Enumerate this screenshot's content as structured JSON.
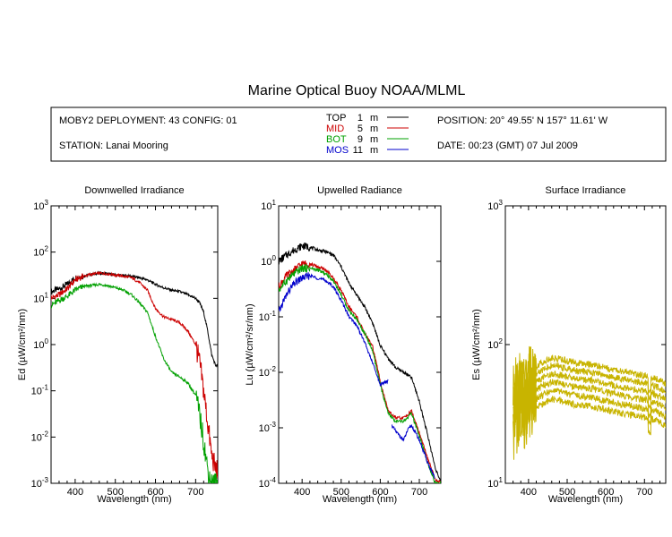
{
  "header": {
    "title": "Marine Optical Buoy NOAA/MLML",
    "deployment": "MOBY2 DEPLOYMENT: 43 CONFIG: 01",
    "station": "STATION: Lanai Mooring",
    "position": "POSITION: 20° 49.55' N   157° 11.61' W",
    "date": "DATE: 00:23 (GMT) 07 Jul 2009"
  },
  "legend": [
    {
      "name": "TOP",
      "depth": "1",
      "unit": "m",
      "color": "#000000"
    },
    {
      "name": "MID",
      "depth": "5",
      "unit": "m",
      "color": "#cc0000"
    },
    {
      "name": "BOT",
      "depth": "9",
      "unit": "m",
      "color": "#00a000"
    },
    {
      "name": "MOS",
      "depth": "11",
      "unit": "m",
      "color": "#0000cc"
    }
  ],
  "colors": {
    "surface": "#c8b400"
  },
  "chart_data": [
    {
      "type": "line",
      "title": "Downwelled Irradiance",
      "xlabel": "Wavelength (nm)",
      "ylabel": "Ed  (µW/cm²/nm)",
      "yscale": "log",
      "xlim": [
        340,
        755
      ],
      "ylim": [
        0.001,
        1000
      ],
      "xticks": [
        "400",
        "500",
        "600",
        "700"
      ],
      "yticks": [
        "10^-3",
        "10^-2",
        "10^-1",
        "10^0",
        "10^1",
        "10^2",
        "10^3"
      ],
      "series": [
        {
          "name": "TOP",
          "x": [
            340,
            360,
            380,
            400,
            420,
            440,
            460,
            480,
            500,
            520,
            540,
            560,
            580,
            600,
            620,
            640,
            660,
            680,
            700,
            710,
            720,
            730,
            740,
            750,
            755
          ],
          "y": [
            14,
            16,
            20,
            28,
            30,
            33,
            35,
            34,
            32,
            31,
            30,
            28,
            25,
            20,
            17,
            15,
            14,
            12,
            10,
            8,
            5,
            2,
            0.6,
            0.35,
            0.35
          ]
        },
        {
          "name": "MID",
          "x": [
            340,
            360,
            380,
            400,
            420,
            440,
            460,
            480,
            500,
            520,
            540,
            560,
            580,
            600,
            620,
            640,
            660,
            680,
            700,
            710,
            720,
            730,
            740,
            750,
            755
          ],
          "y": [
            10,
            12,
            16,
            25,
            30,
            33,
            35,
            34,
            32,
            30,
            28,
            22,
            15,
            6,
            4,
            3.5,
            3,
            2,
            1,
            0.4,
            0.1,
            0.02,
            0.004,
            0.002,
            0.002
          ]
        },
        {
          "name": "BOT",
          "x": [
            340,
            360,
            380,
            400,
            420,
            440,
            460,
            480,
            500,
            520,
            540,
            560,
            580,
            600,
            620,
            640,
            660,
            680,
            700,
            710,
            720,
            730,
            740,
            750,
            755
          ],
          "y": [
            7,
            9,
            11,
            15,
            18,
            19,
            20,
            19,
            17,
            15,
            12,
            8,
            5,
            1.5,
            0.5,
            0.25,
            0.2,
            0.15,
            0.08,
            0.03,
            0.008,
            0.002,
            0.001,
            0.001,
            0.001
          ]
        }
      ]
    },
    {
      "type": "line",
      "title": "Upwelled Radiance",
      "xlabel": "Wavelength (nm)",
      "ylabel": "Lu  (µW/cm²/sr/nm)",
      "yscale": "log",
      "xlim": [
        340,
        755
      ],
      "ylim": [
        0.0001,
        10
      ],
      "xticks": [
        "400",
        "500",
        "600",
        "700"
      ],
      "yticks": [
        "10^-4",
        "10^-3",
        "10^-2",
        "10^-1",
        "10^0",
        "10^1"
      ],
      "series": [
        {
          "name": "TOP",
          "x": [
            340,
            360,
            380,
            400,
            420,
            440,
            460,
            480,
            500,
            520,
            540,
            560,
            580,
            600,
            620,
            640,
            660,
            680,
            700,
            720,
            740,
            755
          ],
          "y": [
            1,
            1.3,
            1.6,
            1.9,
            1.8,
            1.6,
            1.5,
            1.3,
            0.8,
            0.4,
            0.25,
            0.15,
            0.08,
            0.03,
            0.018,
            0.012,
            0.01,
            0.008,
            0.003,
            0.0008,
            0.0002,
            0.0001
          ]
        },
        {
          "name": "MID",
          "x": [
            340,
            360,
            380,
            400,
            420,
            440,
            460,
            480,
            500,
            520,
            540,
            560,
            580,
            600,
            620,
            640,
            660,
            680,
            700,
            720,
            740,
            755
          ],
          "y": [
            0.35,
            0.55,
            0.7,
            0.9,
            0.9,
            0.8,
            0.7,
            0.5,
            0.3,
            0.15,
            0.1,
            0.05,
            0.03,
            0.007,
            0.002,
            0.0015,
            0.0015,
            0.002,
            0.0008,
            0.0003,
            0.00012,
            0.0001
          ]
        },
        {
          "name": "BOT",
          "x": [
            340,
            360,
            380,
            400,
            420,
            440,
            460,
            480,
            500,
            520,
            540,
            560,
            580,
            600,
            620,
            640,
            660,
            680,
            700,
            720,
            740,
            755
          ],
          "y": [
            0.3,
            0.45,
            0.6,
            0.75,
            0.75,
            0.7,
            0.6,
            0.45,
            0.25,
            0.13,
            0.09,
            0.05,
            0.025,
            0.006,
            0.0018,
            0.0013,
            0.0013,
            0.0018,
            0.0007,
            0.00025,
            0.0001,
            0.0001
          ]
        },
        {
          "name": "MOS",
          "x": [
            340,
            360,
            380,
            400,
            420,
            440,
            460,
            480,
            500,
            520,
            540,
            560,
            580,
            600,
            620
          ],
          "y": [
            0.12,
            0.25,
            0.4,
            0.5,
            0.55,
            0.5,
            0.45,
            0.35,
            0.2,
            0.1,
            0.07,
            0.035,
            0.015,
            0.006,
            0.007
          ]
        },
        {
          "name": "MOS",
          "x": [
            630,
            640,
            660,
            670,
            680,
            700,
            720,
            740
          ],
          "y": [
            0.0011,
            0.00085,
            0.0006,
            0.0009,
            0.0011,
            0.0006,
            0.00025,
            0.00012
          ]
        }
      ]
    },
    {
      "type": "line",
      "title": "Surface Irradiance",
      "xlabel": "Wavelength (nm)",
      "ylabel": "Es  (µW/cm²/nm)",
      "yscale": "log",
      "xlim": [
        340,
        755
      ],
      "ylim": [
        10,
        1000
      ],
      "xticks": [
        "400",
        "500",
        "600",
        "700"
      ],
      "yticks": [
        "10^1",
        "10^2",
        "10^3"
      ],
      "base": {
        "x": [
          360,
          380,
          400,
          420,
          440,
          460,
          480,
          500,
          520,
          540,
          560,
          580,
          600,
          620,
          640,
          660,
          680,
          700,
          720,
          740,
          755
        ],
        "y": [
          48,
          55,
          62,
          70,
          76,
          80,
          79,
          76,
          74,
          73,
          72,
          70,
          68,
          66,
          64,
          63,
          61,
          60,
          58,
          55,
          52
        ]
      },
      "scales": [
        1.0,
        0.88,
        0.77,
        0.67,
        0.58,
        0.5
      ]
    }
  ]
}
